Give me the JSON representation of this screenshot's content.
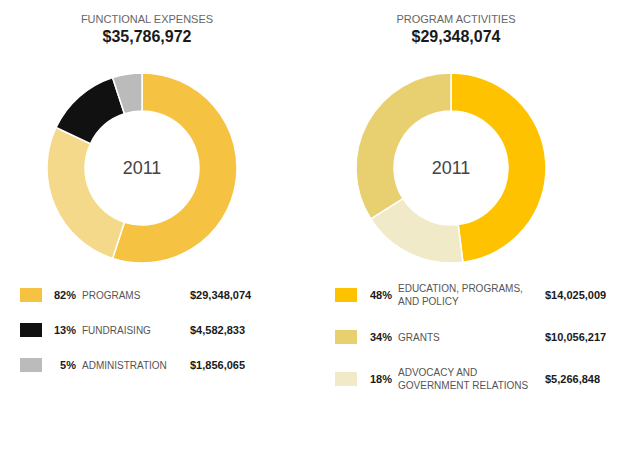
{
  "chart_data": [
    {
      "type": "donut",
      "title": "FUNCTIONAL EXPENSES",
      "subtitle": "$35,786,972",
      "annotation": "2011",
      "values": [
        55,
        27,
        13,
        5
      ],
      "colors": [
        "#F5C242",
        "#F5D98A",
        "#111111",
        "#BBBBBB"
      ],
      "legend_rows": [
        {
          "label": "PROGRAMS",
          "share": 82,
          "share_label": "82%",
          "amount": 29348074,
          "amount_label": "$29,348,074",
          "color": "#F5C242"
        },
        {
          "label": "FUNDRAISING",
          "share": 13,
          "share_label": "13%",
          "amount": 4582833,
          "amount_label": "$4,582,833",
          "color": "#111111"
        },
        {
          "label": "ADMINISTRATION",
          "share": 5,
          "share_label": "5%",
          "amount": 1856065,
          "amount_label": "$1,856,065",
          "color": "#BBBBBB"
        }
      ]
    },
    {
      "type": "donut",
      "title": "PROGRAM ACTIVITIES",
      "subtitle": "$29,348,074",
      "annotation": "2011",
      "values": [
        48,
        18,
        34
      ],
      "colors": [
        "#FFC200",
        "#F0EAC8",
        "#E8D070"
      ],
      "legend_rows": [
        {
          "label": "EDUCATION, PROGRAMS,\nAND POLICY",
          "share": 48,
          "share_label": "48%",
          "amount": 14025009,
          "amount_label": "$14,025,009",
          "color": "#FFC200"
        },
        {
          "label": "GRANTS",
          "share": 34,
          "share_label": "34%",
          "amount": 10056217,
          "amount_label": "$10,056,217",
          "color": "#E8D070"
        },
        {
          "label": "ADVOCACY AND\nGOVERNMENT RELATIONS",
          "share": 18,
          "share_label": "18%",
          "amount": 5266848,
          "amount_label": "$5,266,848",
          "color": "#F0EAC8"
        }
      ]
    }
  ]
}
